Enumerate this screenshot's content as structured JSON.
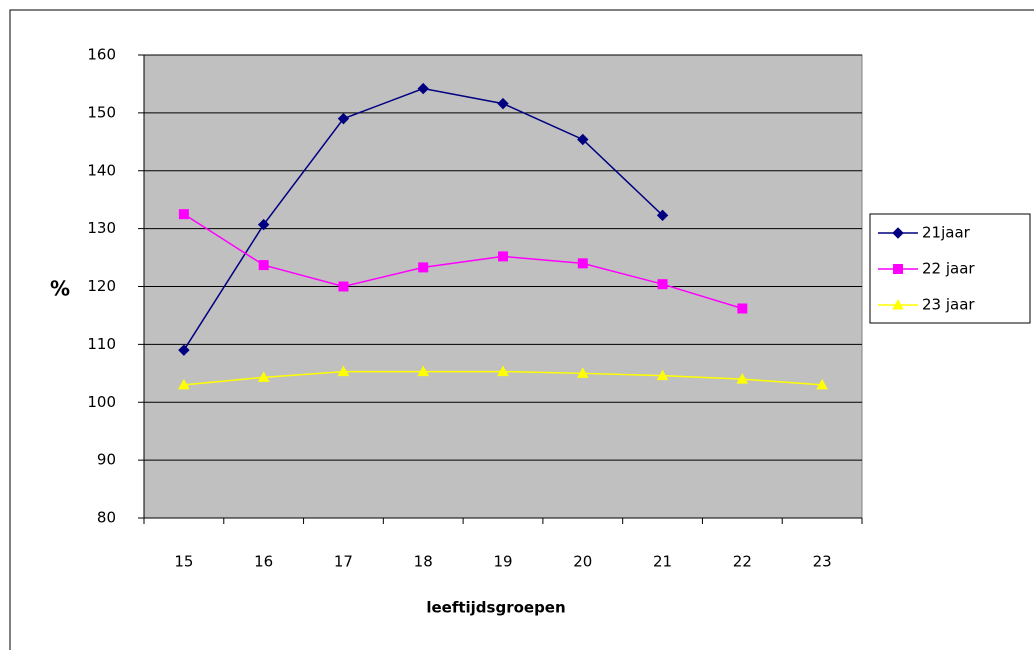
{
  "chart_data": {
    "type": "line",
    "x_label": "leeftijdsgroepen",
    "y_label": "%",
    "categories": [
      "15",
      "16",
      "17",
      "18",
      "19",
      "20",
      "21",
      "22",
      "23"
    ],
    "series": [
      {
        "name": "21jaar",
        "color": "#000080",
        "marker": "diamond",
        "values": [
          109,
          130.7,
          149,
          154.2,
          151.6,
          145.4,
          132.3,
          null,
          null
        ]
      },
      {
        "name": "22 jaar",
        "color": "#ff00ff",
        "marker": "square",
        "values": [
          132.5,
          123.7,
          120,
          123.3,
          125.2,
          124,
          120.4,
          116.2,
          null
        ]
      },
      {
        "name": "23 jaar",
        "color": "#ffff00",
        "marker": "triangle",
        "values": [
          103,
          104.3,
          105.3,
          105.3,
          105.3,
          105,
          104.6,
          104,
          103
        ]
      }
    ],
    "ylim": [
      80,
      160
    ],
    "yticks": [
      80,
      90,
      100,
      110,
      120,
      130,
      140,
      150,
      160
    ],
    "grid": true,
    "plot_background": "#c0c0c0",
    "legend": "right"
  }
}
